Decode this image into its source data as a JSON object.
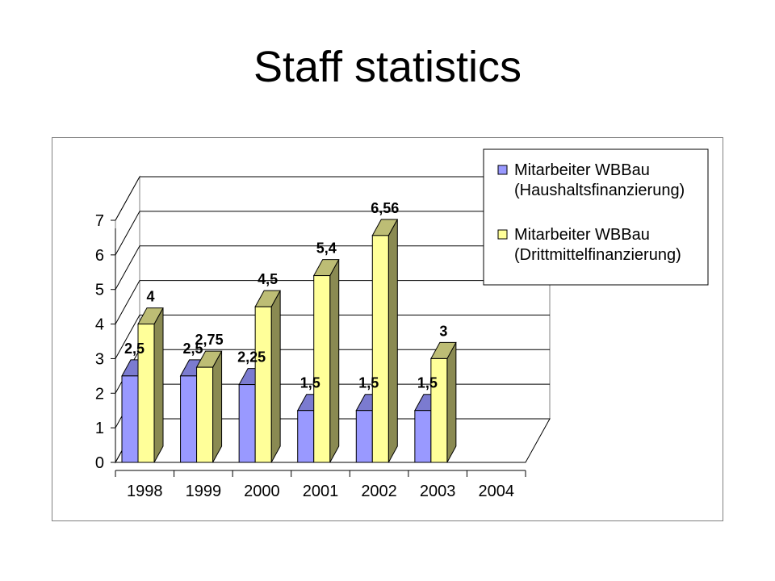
{
  "slide": {
    "title": "Staff statistics"
  },
  "colors": {
    "series1_front": "#9999ff",
    "series1_side": "#5a5aa8",
    "series1_top": "#7b7bd0",
    "series2_front": "#ffff99",
    "series2_side": "#8a8a52",
    "series2_top": "#bdbd75",
    "wall": "#ffffff",
    "grid": "#000000"
  },
  "chart_data": {
    "type": "bar",
    "variant": "3d-clustered-column",
    "categories": [
      "1998",
      "1999",
      "2000",
      "2001",
      "2002",
      "2003",
      "2004"
    ],
    "series": [
      {
        "name": "Mitarbeiter WBBau (Haushaltsfinanzierung)",
        "legend_lines": [
          "Mitarbeiter WBBau",
          "(Haushaltsfinanzierung)"
        ],
        "values": [
          2.5,
          2.5,
          2.25,
          1.5,
          1.5,
          1.5,
          null
        ],
        "labels": [
          "2,5",
          "2,5",
          "2,25",
          "1,5",
          "1,5",
          "1,5",
          ""
        ]
      },
      {
        "name": "Mitarbeiter WBBau (Drittmittelfinanzierung)",
        "legend_lines": [
          "Mitarbeiter WBBau",
          "(Drittmittelfinanzierung)"
        ],
        "values": [
          4,
          2.75,
          4.5,
          5.4,
          6.56,
          3,
          null
        ],
        "labels": [
          "4",
          "2,75",
          "4,5",
          "5,4",
          "6,56",
          "3",
          ""
        ]
      }
    ],
    "ylim": [
      0,
      7
    ],
    "yticks": [
      0,
      1,
      2,
      3,
      4,
      5,
      6,
      7
    ],
    "grid": true,
    "legend_position": "top-right"
  }
}
